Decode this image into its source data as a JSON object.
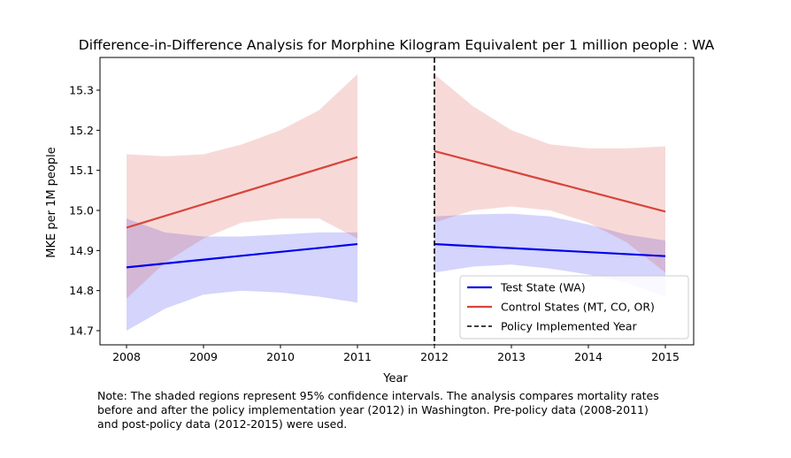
{
  "chart_data": {
    "type": "line",
    "title": "Difference-in-Difference Analysis for Morphine Kilogram Equivalent per 1 million people : WA",
    "xlabel": "Year",
    "ylabel": "MKE per 1M people",
    "xlim": [
      2007.95,
      2015.35
    ],
    "ylim": [
      14.665,
      15.375
    ],
    "x_ticks": [
      "2008",
      "2009",
      "2010",
      "2011",
      "2012",
      "2013",
      "2014",
      "2015"
    ],
    "y_ticks": [
      "14.7",
      "14.8",
      "14.9",
      "15.0",
      "15.1",
      "15.2",
      "15.3"
    ],
    "grid": false,
    "legend_position": "lower-right",
    "policy_year": 2012,
    "series": [
      {
        "name": "Test State (WA)",
        "color": "#0000ee",
        "segments": [
          {
            "x": [
              2008,
              2011
            ],
            "y": [
              14.858,
              14.916
            ],
            "ci_x": [
              2008,
              2008.5,
              2009,
              2009.5,
              2010,
              2010.5,
              2011
            ],
            "ci_low": [
              14.7,
              14.755,
              14.79,
              14.8,
              14.795,
              14.785,
              14.77
            ],
            "ci_high": [
              14.98,
              14.945,
              14.935,
              14.935,
              14.94,
              14.945,
              14.945
            ]
          },
          {
            "x": [
              2012,
              2015
            ],
            "y": [
              14.916,
              14.886
            ],
            "ci_x": [
              2012,
              2012.5,
              2013,
              2013.5,
              2014,
              2014.5,
              2015
            ],
            "ci_low": [
              14.845,
              14.86,
              14.865,
              14.855,
              14.84,
              14.82,
              14.785
            ],
            "ci_high": [
              14.985,
              14.99,
              14.992,
              14.985,
              14.965,
              14.94,
              14.925
            ]
          }
        ]
      },
      {
        "name": "Control States (MT, CO, OR)",
        "color": "#d9443b",
        "segments": [
          {
            "x": [
              2008,
              2011
            ],
            "y": [
              14.957,
              15.133
            ],
            "ci_x": [
              2008,
              2008.5,
              2009,
              2009.5,
              2010,
              2010.5,
              2011
            ],
            "ci_low": [
              14.78,
              14.87,
              14.93,
              14.97,
              14.98,
              14.98,
              14.93
            ],
            "ci_high": [
              15.14,
              15.135,
              15.14,
              15.165,
              15.2,
              15.25,
              15.34
            ]
          },
          {
            "x": [
              2012,
              2015
            ],
            "y": [
              15.148,
              14.997
            ],
            "ci_x": [
              2012,
              2012.5,
              2013,
              2013.5,
              2014,
              2014.5,
              2015
            ],
            "ci_low": [
              14.97,
              15.0,
              15.01,
              15.0,
              14.97,
              14.92,
              14.845
            ],
            "ci_high": [
              15.34,
              15.26,
              15.2,
              15.165,
              15.155,
              15.155,
              15.16
            ]
          }
        ]
      }
    ],
    "legend": [
      {
        "label": "Test State (WA)",
        "color": "#0000ee",
        "style": "solid"
      },
      {
        "label": "Control States (MT, CO, OR)",
        "color": "#d9443b",
        "style": "solid"
      },
      {
        "label": "Policy Implemented Year",
        "color": "#000000",
        "style": "dashed"
      }
    ]
  },
  "note": "Note: The shaded regions represent 95% confidence intervals. The analysis compares mortality rates\nbefore and after the policy implementation year (2012) in Washington. Pre-policy data (2008-2011)\nand post-policy data (2012-2015) were used."
}
